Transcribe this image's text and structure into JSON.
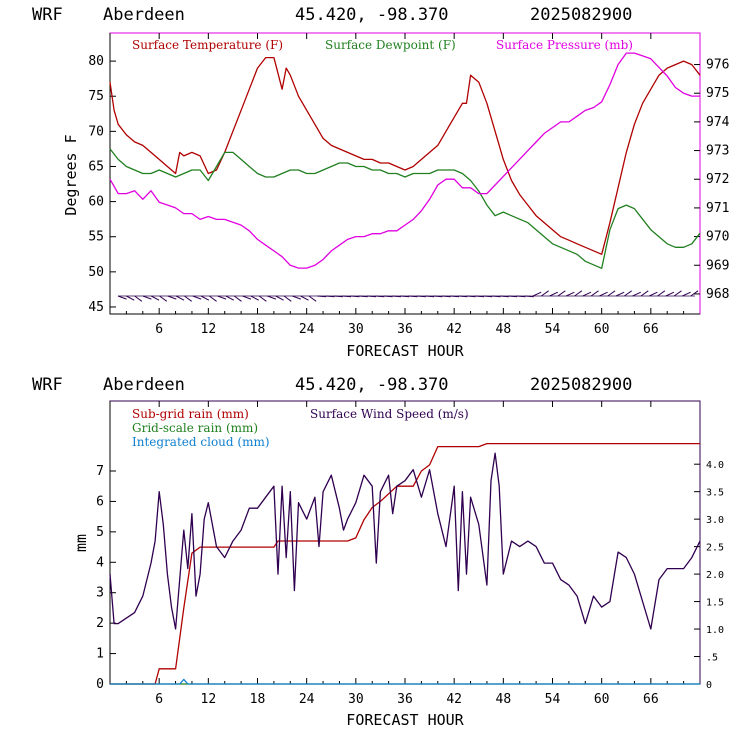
{
  "colors": {
    "temperature": "#b00000",
    "dewpoint": "#208020",
    "pressure": "#e000e0",
    "subgrid_rain": "#b00000",
    "gridscale_rain": "#208020",
    "cloud": "#1080d0",
    "wind": "#300050",
    "barb": "#300050"
  },
  "chart_data": [
    {
      "type": "line",
      "header": {
        "model": "WRF",
        "station": "Aberdeen",
        "coords": "45.420, -98.370",
        "run": "2025082900"
      },
      "xlabel": "FORECAST HOUR",
      "ylabel": "Degrees F",
      "xlim": [
        0,
        72
      ],
      "ylim": [
        44,
        84
      ],
      "y2lim": [
        967.3,
        977.1
      ],
      "xticks": [
        "6",
        "12",
        "18",
        "24",
        "30",
        "36",
        "42",
        "48",
        "54",
        "60",
        "66"
      ],
      "yticks": [
        "45",
        "50",
        "55",
        "60",
        "65",
        "70",
        "75",
        "80"
      ],
      "y2ticks": [
        "968",
        "969",
        "970",
        "971",
        "972",
        "973",
        "974",
        "975",
        "976"
      ],
      "grid": false,
      "legend_position": "top",
      "series": [
        {
          "name": "Surface Temperature (F)",
          "axis": "left",
          "color_key": "temperature",
          "x": [
            0,
            0.5,
            1,
            2,
            3,
            4,
            5,
            6,
            7,
            8,
            8.5,
            9,
            10,
            11,
            12,
            13,
            14,
            15,
            16,
            17,
            18,
            19,
            20,
            21,
            21.5,
            22,
            23,
            24,
            25,
            26,
            27,
            28,
            29,
            30,
            31,
            32,
            33,
            34,
            35,
            36,
            37,
            38,
            39,
            40,
            41,
            42,
            43,
            43.5,
            44,
            45,
            46,
            47,
            48,
            49,
            50,
            51,
            52,
            53,
            54,
            55,
            56,
            57,
            58,
            59,
            60,
            61,
            62,
            63,
            64,
            65,
            66,
            67,
            68,
            69,
            70,
            71,
            72
          ],
          "y": [
            77,
            73,
            71,
            69.5,
            68.5,
            68,
            67,
            66,
            65,
            64,
            67,
            66.5,
            67,
            66.5,
            64,
            64.5,
            67,
            70,
            73,
            76,
            79,
            80.5,
            80.5,
            76,
            79,
            78,
            75,
            73,
            71,
            69,
            68,
            67.5,
            67,
            66.5,
            66,
            66,
            65.5,
            65.5,
            65,
            64.5,
            65,
            66,
            67,
            68,
            70,
            72,
            74,
            74,
            78,
            77,
            74,
            70,
            66,
            63,
            61,
            59.5,
            58,
            57,
            56,
            55,
            54.5,
            54,
            53.5,
            53,
            52.5,
            57,
            62,
            67,
            71,
            74,
            76,
            78,
            79,
            79.5,
            80,
            79.5,
            78
          ]
        },
        {
          "name": "Surface Dewpoint (F)",
          "axis": "left",
          "color_key": "dewpoint",
          "x": [
            0,
            1,
            2,
            3,
            4,
            5,
            6,
            7,
            8,
            9,
            10,
            11,
            12,
            13,
            14,
            15,
            16,
            17,
            18,
            19,
            20,
            21,
            22,
            23,
            24,
            25,
            26,
            27,
            28,
            29,
            30,
            31,
            32,
            33,
            34,
            35,
            36,
            37,
            38,
            39,
            40,
            41,
            42,
            43,
            44,
            45,
            46,
            47,
            48,
            49,
            50,
            51,
            52,
            53,
            54,
            55,
            56,
            57,
            58,
            59,
            60,
            61,
            62,
            63,
            64,
            65,
            66,
            67,
            68,
            69,
            70,
            71,
            72
          ],
          "y": [
            67.5,
            66,
            65,
            64.5,
            64,
            64,
            64.5,
            64,
            63.5,
            64,
            64.5,
            64.5,
            63,
            65,
            67,
            67,
            66,
            65,
            64,
            63.5,
            63.5,
            64,
            64.5,
            64.5,
            64,
            64,
            64.5,
            65,
            65.5,
            65.5,
            65,
            65,
            64.5,
            64.5,
            64,
            64,
            63.5,
            64,
            64,
            64,
            64.5,
            64.5,
            64.5,
            64,
            63,
            61.5,
            59.5,
            58,
            58.5,
            58,
            57.5,
            57,
            56,
            55,
            54,
            53.5,
            53,
            52.5,
            51.5,
            51,
            50.5,
            56,
            59,
            59.5,
            59,
            57.5,
            56,
            55,
            54,
            53.5,
            53.5,
            54,
            55.5
          ]
        },
        {
          "name": "Surface Pressure (mb)",
          "axis": "right",
          "color_key": "pressure",
          "x": [
            0,
            1,
            2,
            3,
            4,
            5,
            6,
            7,
            8,
            9,
            10,
            11,
            12,
            13,
            14,
            15,
            16,
            17,
            18,
            19,
            20,
            21,
            22,
            23,
            24,
            25,
            26,
            27,
            28,
            29,
            30,
            31,
            32,
            33,
            34,
            35,
            36,
            37,
            38,
            39,
            40,
            41,
            42,
            43,
            44,
            45,
            46,
            47,
            48,
            49,
            50,
            51,
            52,
            53,
            54,
            55,
            56,
            57,
            58,
            59,
            60,
            61,
            62,
            63,
            64,
            65,
            66,
            67,
            68,
            69,
            70,
            71,
            72
          ],
          "y": [
            972,
            971.5,
            971.5,
            971.6,
            971.3,
            971.6,
            971.2,
            971.1,
            971,
            970.8,
            970.8,
            970.6,
            970.7,
            970.6,
            970.6,
            970.5,
            970.4,
            970.2,
            969.9,
            969.7,
            969.5,
            969.3,
            969,
            968.9,
            968.9,
            969,
            969.2,
            969.5,
            969.7,
            969.9,
            970,
            970,
            970.1,
            970.1,
            970.2,
            970.2,
            970.4,
            970.6,
            970.9,
            971.3,
            971.8,
            972,
            972,
            971.7,
            971.7,
            971.5,
            971.5,
            971.8,
            972.1,
            972.4,
            972.7,
            973,
            973.3,
            973.6,
            973.8,
            974,
            974,
            974.2,
            974.4,
            974.5,
            974.7,
            975.3,
            976,
            976.4,
            976.4,
            976.3,
            976.2,
            975.9,
            975.6,
            975.2,
            975,
            974.9,
            974.9
          ]
        }
      ]
    },
    {
      "type": "line",
      "header": {
        "model": "WRF",
        "station": "Aberdeen",
        "coords": "45.420, -98.370",
        "run": "2025082900"
      },
      "xlabel": "FORECAST HOUR",
      "ylabel": "mm",
      "xlim": [
        0,
        72
      ],
      "ylim": [
        0,
        9.3
      ],
      "y2lim": [
        0,
        5.15
      ],
      "xticks": [
        "6",
        "12",
        "18",
        "24",
        "30",
        "36",
        "42",
        "48",
        "54",
        "60",
        "66"
      ],
      "yticks": [
        "0",
        "1",
        "2",
        "3",
        "4",
        "5",
        "6",
        "7"
      ],
      "y2ticks": [
        "0",
        ".5",
        "1.0",
        "1.5",
        "2.0",
        "2.5",
        "3.0",
        "3.5",
        "4.0"
      ],
      "grid": false,
      "legend_position": "top-left",
      "series": [
        {
          "name": "Sub-grid rain (mm)",
          "axis": "left",
          "color_key": "subgrid_rain",
          "x": [
            0,
            5.5,
            6,
            8,
            8.5,
            9,
            10,
            11,
            12,
            19,
            20,
            20.5,
            29,
            30,
            31,
            32,
            33,
            35,
            37,
            38,
            39,
            40,
            41,
            45,
            46,
            72
          ],
          "y": [
            0,
            0,
            0.5,
            0.5,
            1.5,
            2.5,
            4.3,
            4.5,
            4.5,
            4.5,
            4.5,
            4.7,
            4.7,
            4.8,
            5.4,
            5.8,
            6.0,
            6.5,
            6.5,
            7.0,
            7.2,
            7.8,
            7.8,
            7.8,
            7.9,
            7.9
          ]
        },
        {
          "name": "Grid-scale rain (mm)",
          "axis": "left",
          "color_key": "gridscale_rain",
          "x": [
            0,
            72
          ],
          "y": [
            0,
            0
          ]
        },
        {
          "name": "Integrated cloud (mm)",
          "axis": "left",
          "color_key": "cloud",
          "x": [
            0,
            8.5,
            9,
            9.5,
            10,
            72
          ],
          "y": [
            0,
            0,
            0.15,
            0,
            0,
            0
          ]
        },
        {
          "name": "Surface Wind Speed (m/s)",
          "axis": "right",
          "color_key": "wind",
          "x": [
            0,
            0.5,
            1,
            2,
            3,
            4,
            5,
            5.5,
            6,
            6.5,
            7,
            7.5,
            8,
            9,
            9.5,
            10,
            10.5,
            11,
            11.5,
            12,
            13,
            14,
            15,
            16,
            17,
            18,
            19,
            20,
            20.5,
            21,
            21.5,
            22,
            22.5,
            23,
            24,
            25,
            25.5,
            26,
            27,
            28,
            28.5,
            29,
            30,
            31,
            32,
            32.5,
            33,
            34,
            34.5,
            35,
            36,
            37,
            38,
            39,
            40,
            41,
            42,
            42.5,
            43,
            43.5,
            44,
            45,
            46,
            46.5,
            47,
            47.5,
            48,
            49,
            50,
            51,
            52,
            53,
            54,
            55,
            56,
            57,
            58,
            59,
            60,
            61,
            62,
            63,
            64,
            65,
            66,
            67,
            68,
            69,
            70,
            71,
            72
          ],
          "y": [
            2.0,
            1.1,
            1.1,
            1.2,
            1.3,
            1.6,
            2.2,
            2.6,
            3.5,
            2.9,
            2.0,
            1.4,
            1.0,
            2.8,
            2.1,
            3.1,
            1.6,
            2.0,
            3.0,
            3.3,
            2.5,
            2.3,
            2.6,
            2.8,
            3.2,
            3.2,
            3.4,
            3.6,
            2.0,
            3.6,
            2.3,
            3.5,
            1.7,
            3.3,
            3.0,
            3.4,
            2.5,
            3.5,
            3.8,
            3.2,
            2.8,
            3.0,
            3.3,
            3.8,
            3.6,
            2.2,
            3.5,
            3.8,
            3.1,
            3.6,
            3.7,
            3.9,
            3.4,
            3.9,
            3.1,
            2.5,
            3.6,
            1.7,
            3.5,
            2.0,
            3.4,
            2.9,
            1.8,
            3.7,
            4.2,
            3.6,
            2.0,
            2.6,
            2.5,
            2.6,
            2.5,
            2.2,
            2.2,
            1.9,
            1.8,
            1.6,
            1.1,
            1.6,
            1.4,
            1.5,
            2.4,
            2.3,
            2.0,
            1.5,
            1.0,
            1.9,
            2.1,
            2.1,
            2.1,
            2.3,
            2.6
          ]
        }
      ]
    }
  ]
}
